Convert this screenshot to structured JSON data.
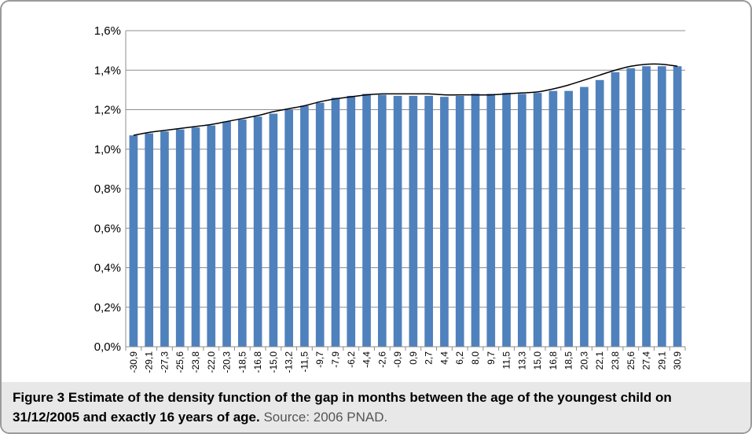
{
  "chart_data": {
    "type": "bar",
    "categories": [
      "-30,9",
      "-29,1",
      "-27,3",
      "-25,6",
      "-23,8",
      "-22,0",
      "-20,3",
      "-18,5",
      "-16,8",
      "-15,0",
      "-13,2",
      "-11,5",
      "-9,7",
      "-7,9",
      "-6,2",
      "-4,4",
      "-2,6",
      "-0,9",
      "0,9",
      "2,7",
      "4,4",
      "6,2",
      "8,0",
      "9,7",
      "11,5",
      "13,3",
      "15,0",
      "16,8",
      "18,5",
      "20,3",
      "22,1",
      "23,8",
      "25,6",
      "27,4",
      "29,1",
      "30,9"
    ],
    "series": [
      {
        "type": "bar",
        "color": "#4f81bd",
        "values": [
          1.07,
          1.08,
          1.09,
          1.1,
          1.11,
          1.12,
          1.14,
          1.15,
          1.165,
          1.18,
          1.2,
          1.22,
          1.235,
          1.26,
          1.27,
          1.28,
          1.275,
          1.27,
          1.27,
          1.27,
          1.265,
          1.27,
          1.28,
          1.28,
          1.285,
          1.28,
          1.285,
          1.295,
          1.295,
          1.315,
          1.35,
          1.39,
          1.41,
          1.42,
          1.42,
          1.42
        ]
      },
      {
        "type": "line",
        "color": "#000000",
        "values": [
          1.07,
          1.085,
          1.095,
          1.105,
          1.115,
          1.125,
          1.14,
          1.155,
          1.17,
          1.19,
          1.205,
          1.22,
          1.24,
          1.255,
          1.265,
          1.275,
          1.28,
          1.28,
          1.28,
          1.28,
          1.275,
          1.275,
          1.275,
          1.275,
          1.28,
          1.285,
          1.29,
          1.305,
          1.325,
          1.35,
          1.375,
          1.4,
          1.42,
          1.43,
          1.43,
          1.42
        ]
      }
    ],
    "ylim": [
      0,
      1.6
    ],
    "yticks": [
      {
        "value": 0,
        "label": "0,0%"
      },
      {
        "value": 0.2,
        "label": "0,2%"
      },
      {
        "value": 0.4,
        "label": "0,4%"
      },
      {
        "value": 0.6,
        "label": "0,6%"
      },
      {
        "value": 0.8,
        "label": "0,8%"
      },
      {
        "value": 1.0,
        "label": "1,0%"
      },
      {
        "value": 1.2,
        "label": "1,2%"
      },
      {
        "value": 1.4,
        "label": "1,4%"
      },
      {
        "value": 1.6,
        "label": "1,6%"
      }
    ],
    "grid": true
  },
  "caption": {
    "label": "Figure 3",
    "text": "Estimate of the density function of the gap in months between the age of the youngest child on 31/12/2005 and exactly 16 years of age.",
    "source": "Source: 2006 PNAD."
  }
}
